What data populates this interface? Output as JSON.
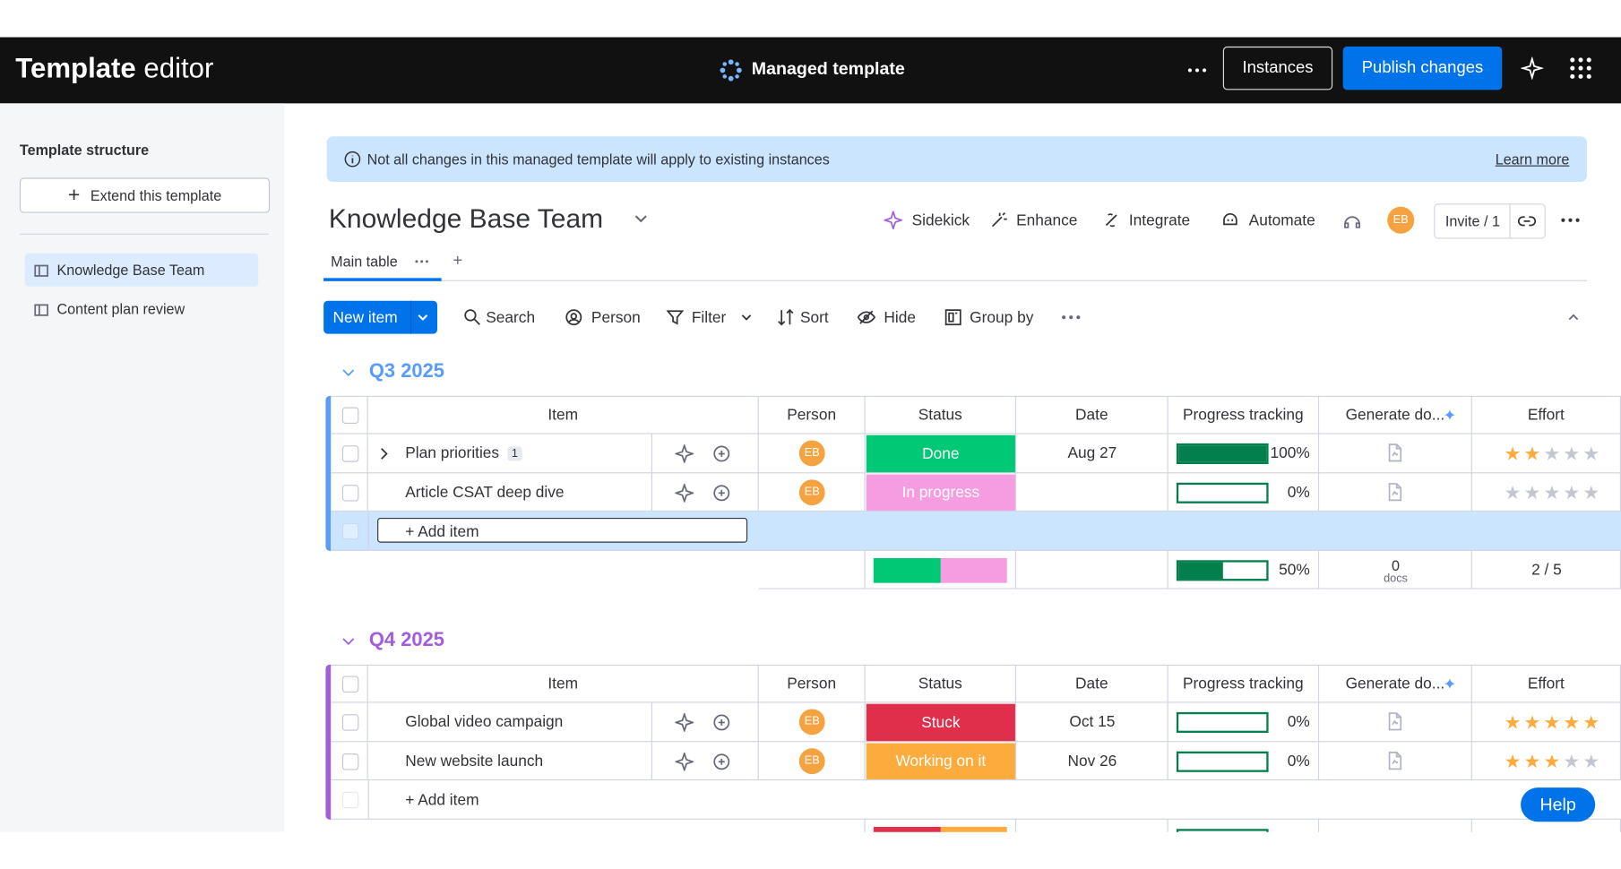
{
  "topbar": {
    "title_bold": "Template",
    "title_light": "editor",
    "center": "Managed template",
    "instances": "Instances",
    "publish": "Publish changes"
  },
  "sidebar": {
    "heading": "Template structure",
    "extend": "Extend this template",
    "boards": [
      "Knowledge Base Team",
      "Content plan review"
    ]
  },
  "banner": {
    "text": "Not all changes in this managed template will apply to existing instances",
    "link": "Learn more"
  },
  "board": {
    "title": "Knowledge Base Team",
    "actions": [
      "Sidekick",
      "Enhance",
      "Integrate",
      "Automate"
    ],
    "avatar": "EB",
    "invite": "Invite / 1",
    "tab": "Main table",
    "new_item": "New item",
    "tools": [
      "Search",
      "Person",
      "Filter",
      "Sort",
      "Hide",
      "Group by"
    ]
  },
  "columns": [
    "Item",
    "Person",
    "Status",
    "Date",
    "Progress tracking",
    "Generate do...",
    "Effort"
  ],
  "effort_max": 5,
  "groups": [
    {
      "name": "Q3 2025",
      "color": "#579bfc",
      "add_item": "+ Add item",
      "add_active": true,
      "rows": [
        {
          "item": "Plan priorities",
          "subitems": 1,
          "person": "EB",
          "status": "Done",
          "status_color": "#00c875",
          "date": "Aug 27",
          "progress": 100,
          "progress_label": "100%",
          "effort": 2
        },
        {
          "item": "Article CSAT deep dive",
          "subitems": null,
          "person": "EB",
          "status": "In progress",
          "status_color": "#f59de0",
          "date": null,
          "progress": 0,
          "progress_label": "0%",
          "effort": 0
        }
      ],
      "summary": {
        "progress": 50,
        "progress_label": "50%",
        "docs": 0,
        "docs_label": "docs",
        "effort_label": "2 / 5"
      }
    },
    {
      "name": "Q4 2025",
      "color": "#a25ddc",
      "add_item": "+ Add item",
      "add_active": false,
      "rows": [
        {
          "item": "Global video campaign",
          "subitems": null,
          "person": "EB",
          "status": "Stuck",
          "status_color": "#df2f4a",
          "date": "Oct 15",
          "progress": 0,
          "progress_label": "0%",
          "effort": 5
        },
        {
          "item": "New website launch",
          "subitems": null,
          "person": "EB",
          "status": "Working on it",
          "status_color": "#fdab3d",
          "date": "Nov 26",
          "progress": 0,
          "progress_label": "0%",
          "effort": 3
        }
      ],
      "summary": null
    }
  ],
  "help": "Help"
}
